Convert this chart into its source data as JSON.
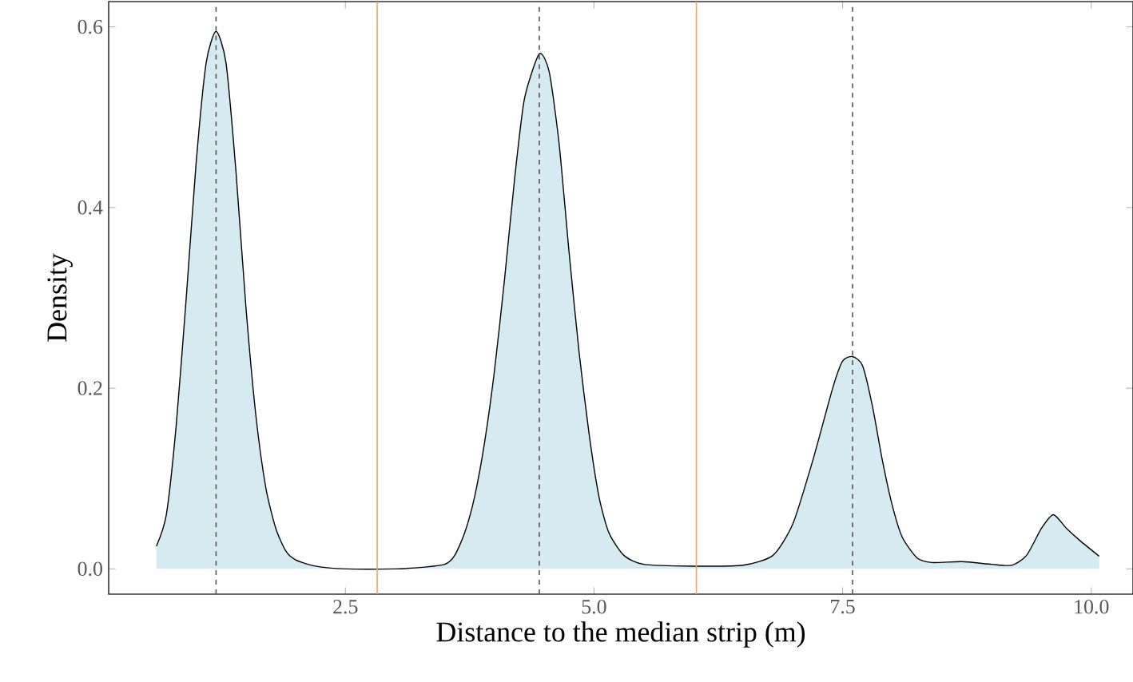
{
  "chart_data": {
    "type": "area",
    "xlabel": "Distance to the median strip (m)",
    "ylabel": "Density",
    "xlim": [
      0.12,
      10.42
    ],
    "ylim": [
      -0.028,
      0.628
    ],
    "xticks": [
      {
        "value": 2.5,
        "label": "2.5"
      },
      {
        "value": 5.0,
        "label": "5.0"
      },
      {
        "value": 7.5,
        "label": "7.5"
      },
      {
        "value": 10.0,
        "label": "10.0"
      }
    ],
    "yticks": [
      {
        "value": 0.0,
        "label": "0.0"
      },
      {
        "value": 0.2,
        "label": "0.2"
      },
      {
        "value": 0.4,
        "label": "0.4"
      },
      {
        "value": 0.6,
        "label": "0.6"
      }
    ],
    "grid": false,
    "series": [
      {
        "color": "#d6eaf1",
        "x": [
          0.6,
          0.7,
          0.8,
          0.9,
          1.0,
          1.1,
          1.2,
          1.3,
          1.4,
          1.5,
          1.6,
          1.7,
          1.8,
          1.9,
          2.0,
          2.2,
          2.5,
          3.0,
          3.3,
          3.5,
          3.6,
          3.7,
          3.8,
          3.9,
          4.0,
          4.1,
          4.2,
          4.3,
          4.45,
          4.55,
          4.65,
          4.75,
          4.85,
          4.95,
          5.05,
          5.15,
          5.3,
          5.5,
          6.0,
          6.5,
          6.8,
          7.0,
          7.2,
          7.4,
          7.5,
          7.6,
          7.7,
          7.8,
          7.9,
          8.0,
          8.1,
          8.25,
          8.4,
          8.7,
          9.0,
          9.2,
          9.35,
          9.5,
          9.62,
          9.75,
          9.9,
          10.08
        ],
        "values": [
          0.025,
          0.06,
          0.16,
          0.3,
          0.45,
          0.56,
          0.595,
          0.56,
          0.44,
          0.29,
          0.17,
          0.09,
          0.045,
          0.02,
          0.01,
          0.003,
          0.0,
          0.0,
          0.002,
          0.005,
          0.015,
          0.04,
          0.08,
          0.14,
          0.22,
          0.32,
          0.43,
          0.52,
          0.57,
          0.55,
          0.47,
          0.35,
          0.24,
          0.15,
          0.08,
          0.04,
          0.015,
          0.005,
          0.003,
          0.004,
          0.015,
          0.05,
          0.12,
          0.2,
          0.23,
          0.235,
          0.225,
          0.18,
          0.12,
          0.07,
          0.035,
          0.012,
          0.007,
          0.008,
          0.005,
          0.004,
          0.015,
          0.045,
          0.06,
          0.045,
          0.03,
          0.014
        ]
      }
    ],
    "ref_lines": [
      {
        "axis": "x",
        "value": 1.2,
        "color": "#555555",
        "line_style": "dashed"
      },
      {
        "axis": "x",
        "value": 4.45,
        "color": "#555555",
        "line_style": "dashed"
      },
      {
        "axis": "x",
        "value": 7.6,
        "color": "#555555",
        "line_style": "dashed"
      },
      {
        "axis": "x",
        "value": 2.82,
        "color": "#e8a868",
        "line_style": "solid"
      },
      {
        "axis": "x",
        "value": 6.03,
        "color": "#e8a868",
        "line_style": "solid"
      }
    ]
  }
}
